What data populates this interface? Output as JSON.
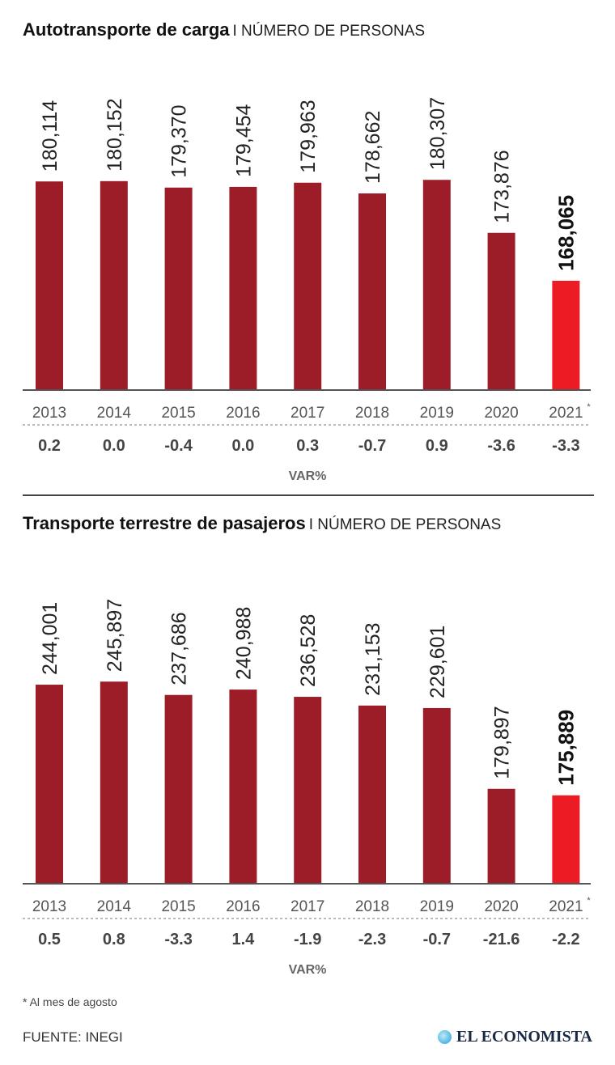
{
  "colors": {
    "bar": "#9c1d27",
    "highlight": "#ec1c24",
    "axis": "#555"
  },
  "chart_data": [
    {
      "type": "bar",
      "title": "Autotransporte de carga",
      "subtitle": "I NÚMERO DE PERSONAS",
      "categories": [
        "2013",
        "2014",
        "2015",
        "2016",
        "2017",
        "2018",
        "2019",
        "2020",
        "2021"
      ],
      "category_marks": [
        "",
        "",
        "",
        "",
        "",
        "",
        "",
        "",
        "*"
      ],
      "values": [
        180114,
        180152,
        179370,
        179454,
        179963,
        178662,
        180307,
        173876,
        168065
      ],
      "value_labels": [
        "180,114",
        "180,152",
        "179,370",
        "179,454",
        "179,963",
        "178,662",
        "180,307",
        "173,876",
        "168,065"
      ],
      "var_pct": [
        "0.2",
        "0.0",
        "-0.4",
        "0.0",
        "0.3",
        "-0.7",
        "0.9",
        "-3.6",
        "-3.3"
      ],
      "var_label": "VAR%",
      "ylim": [
        154800,
        182000
      ],
      "highlight_index": 8
    },
    {
      "type": "bar",
      "title": "Transporte terrestre de pasajeros",
      "subtitle": "I NÚMERO DE PERSONAS",
      "categories": [
        "2013",
        "2014",
        "2015",
        "2016",
        "2017",
        "2018",
        "2019",
        "2020",
        "2021"
      ],
      "category_marks": [
        "",
        "",
        "",
        "",
        "",
        "",
        "",
        "",
        "*"
      ],
      "values": [
        244001,
        245897,
        237686,
        240988,
        236528,
        231153,
        229601,
        179897,
        175889
      ],
      "value_labels": [
        "244,001",
        "245,897",
        "237,686",
        "240,988",
        "236,528",
        "231,153",
        "229,601",
        "179,897",
        "175,889"
      ],
      "var_pct": [
        "0.5",
        "0.8",
        "-3.3",
        "1.4",
        "-1.9",
        "-2.3",
        "-0.7",
        "-21.6",
        "-2.2"
      ],
      "var_label": "VAR%",
      "ylim": [
        121500,
        250000
      ],
      "highlight_index": 8
    }
  ],
  "footnote": "* Al mes de agosto",
  "source": "FUENTE: INEGI",
  "logo": "EL ECONOMISTA"
}
